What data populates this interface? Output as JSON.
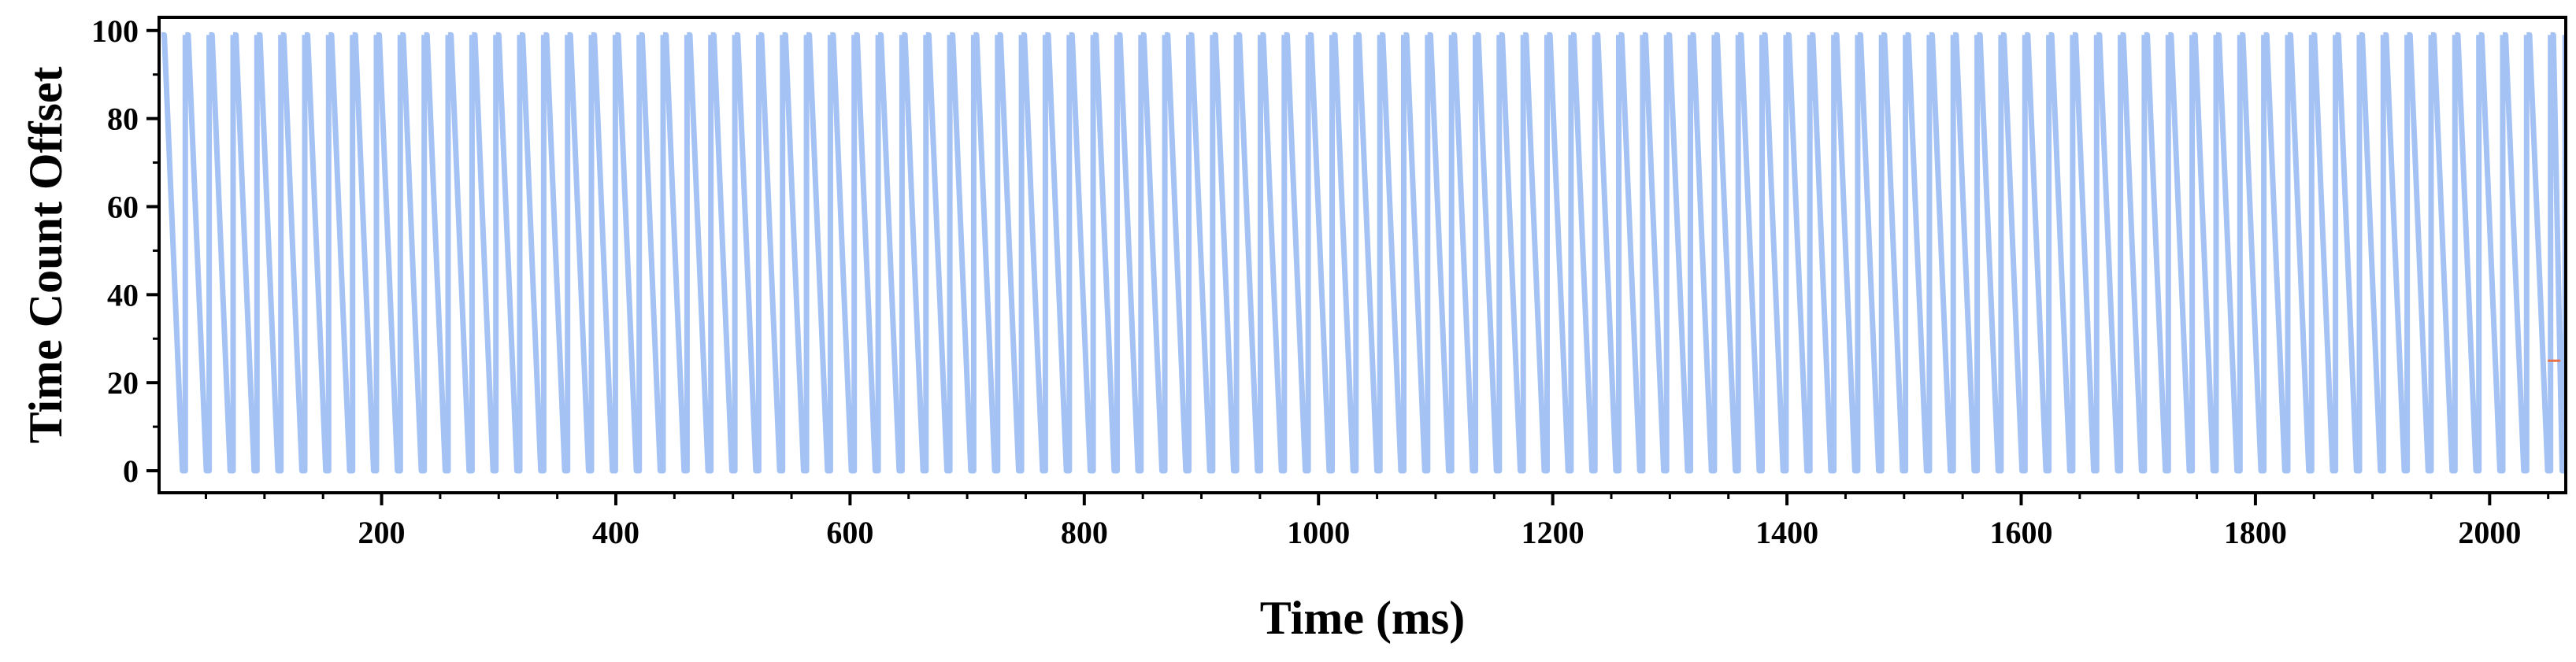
{
  "chart_data": {
    "type": "line",
    "title": "",
    "xlabel": "Time (ms)",
    "ylabel": "Time Count Offset",
    "xlim": [
      10,
      2065
    ],
    "ylim": [
      -5,
      103
    ],
    "x_ticks": [
      200,
      400,
      600,
      800,
      1000,
      1200,
      1400,
      1600,
      1800,
      2000
    ],
    "x_tick_labels": [
      "200",
      "400",
      "600",
      "800",
      "1000",
      "1200",
      "1400",
      "1600",
      "1800",
      "2000"
    ],
    "y_ticks": [
      0,
      20,
      40,
      60,
      80,
      100
    ],
    "y_tick_labels": [
      "0",
      "20",
      "40",
      "60",
      "80",
      "100"
    ],
    "grid": false,
    "legend": "none",
    "series": [
      {
        "color": "#a4c2f4",
        "pattern": "sawtooth",
        "period_ms": 20.4,
        "min": 0,
        "max": 99,
        "start_ms": 12,
        "end_ms": 2062
      }
    ],
    "annotations": [
      {
        "type": "marker",
        "x": 2055,
        "y": 25,
        "color": "#e8734a"
      }
    ]
  }
}
